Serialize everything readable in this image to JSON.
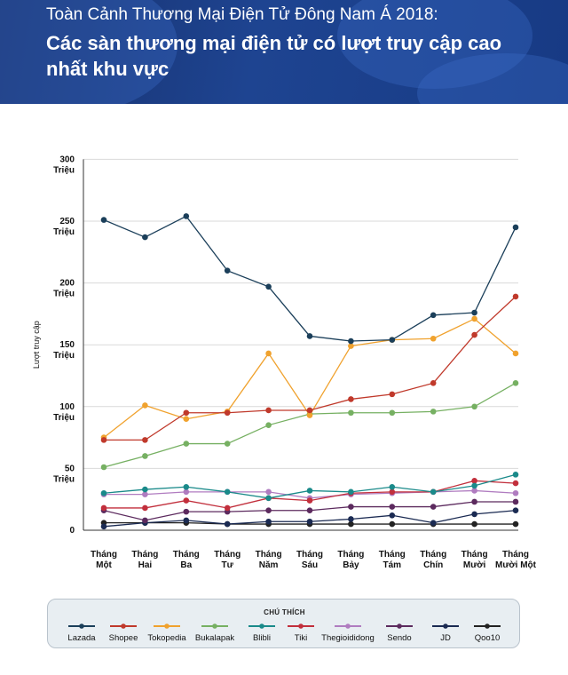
{
  "header": {
    "supertitle": "Toàn Cảnh Thương Mại Điện Tử Đông Nam Á 2018:",
    "title": "Các sàn thương mại điện tử có lượt truy cập cao nhất khu vực"
  },
  "chart_data": {
    "type": "line",
    "ylabel": "Lượt truy cập",
    "xlabel": "",
    "ylim": [
      0,
      300
    ],
    "grid": "horizontal",
    "y_ticks": [
      {
        "value": 0,
        "label": [
          "0"
        ]
      },
      {
        "value": 50,
        "label": [
          "50",
          "Triệu"
        ]
      },
      {
        "value": 100,
        "label": [
          "100",
          "Triệu"
        ]
      },
      {
        "value": 150,
        "label": [
          "150",
          "Triệu"
        ]
      },
      {
        "value": 200,
        "label": [
          "200",
          "Triệu"
        ]
      },
      {
        "value": 250,
        "label": [
          "250",
          "Triệu"
        ]
      },
      {
        "value": 300,
        "label": [
          "300",
          "Triệu"
        ]
      }
    ],
    "categories": [
      [
        "Tháng",
        "Một"
      ],
      [
        "Tháng",
        "Hai"
      ],
      [
        "Tháng",
        "Ba"
      ],
      [
        "Tháng",
        "Tư"
      ],
      [
        "Tháng",
        "Năm"
      ],
      [
        "Tháng",
        "Sáu"
      ],
      [
        "Tháng",
        "Bảy"
      ],
      [
        "Tháng",
        "Tám"
      ],
      [
        "Tháng",
        "Chín"
      ],
      [
        "Tháng",
        "Mười"
      ],
      [
        "Tháng",
        "Mười Một"
      ]
    ],
    "legend_title": "CHÚ THÍCH",
    "legend_position": "bottom",
    "series": [
      {
        "name": "Lazada",
        "color": "#1b3f5a",
        "values": [
          251,
          237,
          254,
          210,
          197,
          157,
          153,
          154,
          174,
          176,
          245
        ]
      },
      {
        "name": "Shopee",
        "color": "#c0392b",
        "values": [
          73,
          73,
          95,
          95,
          97,
          97,
          106,
          110,
          119,
          158,
          189
        ]
      },
      {
        "name": "Tokopedia",
        "color": "#f0a22e",
        "values": [
          75,
          101,
          90,
          96,
          143,
          93,
          149,
          154,
          155,
          171,
          143
        ]
      },
      {
        "name": "Bukalapak",
        "color": "#76b062",
        "values": [
          51,
          60,
          70,
          70,
          85,
          94,
          95,
          95,
          96,
          100,
          119
        ]
      },
      {
        "name": "Blibli",
        "color": "#1a8a8a",
        "values": [
          30,
          33,
          35,
          31,
          26,
          32,
          31,
          35,
          31,
          36,
          45
        ]
      },
      {
        "name": "Tiki",
        "color": "#c22f3c",
        "values": [
          18,
          18,
          24,
          18,
          26,
          24,
          30,
          31,
          31,
          40,
          38
        ]
      },
      {
        "name": "Thegioididong",
        "color": "#b07cc0",
        "values": [
          29,
          29,
          31,
          31,
          31,
          26,
          29,
          30,
          31,
          32,
          30
        ]
      },
      {
        "name": "Sendo",
        "color": "#5c2a5e",
        "values": [
          16,
          8,
          15,
          15,
          16,
          16,
          19,
          19,
          19,
          23,
          23
        ]
      },
      {
        "name": "JD",
        "color": "#1a2a52",
        "values": [
          3,
          6,
          8,
          5,
          7,
          7,
          9,
          12,
          6,
          13,
          16
        ]
      },
      {
        "name": "Qoo10",
        "color": "#222222",
        "values": [
          6,
          6,
          6,
          5,
          5,
          5,
          5,
          5,
          5,
          5,
          5
        ]
      }
    ]
  }
}
